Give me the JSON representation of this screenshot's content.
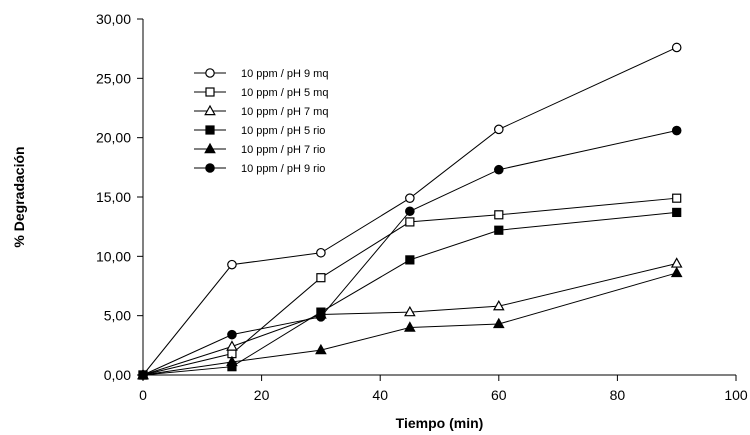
{
  "chart_data": {
    "type": "line",
    "title": "",
    "xlabel": "Tiempo (min)",
    "ylabel": "% Degradación",
    "xlim": [
      0,
      100
    ],
    "ylim": [
      0,
      30
    ],
    "xticks": [
      "0",
      "20",
      "40",
      "60",
      "80",
      "100"
    ],
    "yticks": [
      "0,00",
      "5,00",
      "10,00",
      "15,00",
      "20,00",
      "25,00",
      "30,00"
    ],
    "grid": false,
    "legend_position": "top-left",
    "x": [
      0,
      15,
      30,
      45,
      60,
      90
    ],
    "series": [
      {
        "name": "10 ppm / pH 9 mq",
        "marker": "circle-open",
        "values": [
          0,
          9.3,
          10.3,
          14.9,
          20.7,
          27.6
        ]
      },
      {
        "name": "10 ppm / pH 5 mq",
        "marker": "square-open",
        "values": [
          0,
          1.8,
          8.2,
          12.9,
          13.5,
          14.9
        ]
      },
      {
        "name": "10 ppm / pH 7 mq",
        "marker": "triangle-open",
        "values": [
          0,
          2.4,
          5.1,
          5.3,
          5.8,
          9.4
        ]
      },
      {
        "name": "10 ppm / pH 5 rio",
        "marker": "square-filled",
        "values": [
          0,
          0.7,
          5.3,
          9.7,
          12.2,
          13.7
        ]
      },
      {
        "name": "10 ppm / pH 7 rio",
        "marker": "triangle-filled",
        "values": [
          0,
          1.1,
          2.1,
          4.0,
          4.3,
          8.6
        ]
      },
      {
        "name": "10 ppm / pH 9 rio",
        "marker": "circle-filled",
        "values": [
          0,
          3.4,
          4.9,
          13.8,
          17.3,
          20.6
        ]
      }
    ]
  }
}
